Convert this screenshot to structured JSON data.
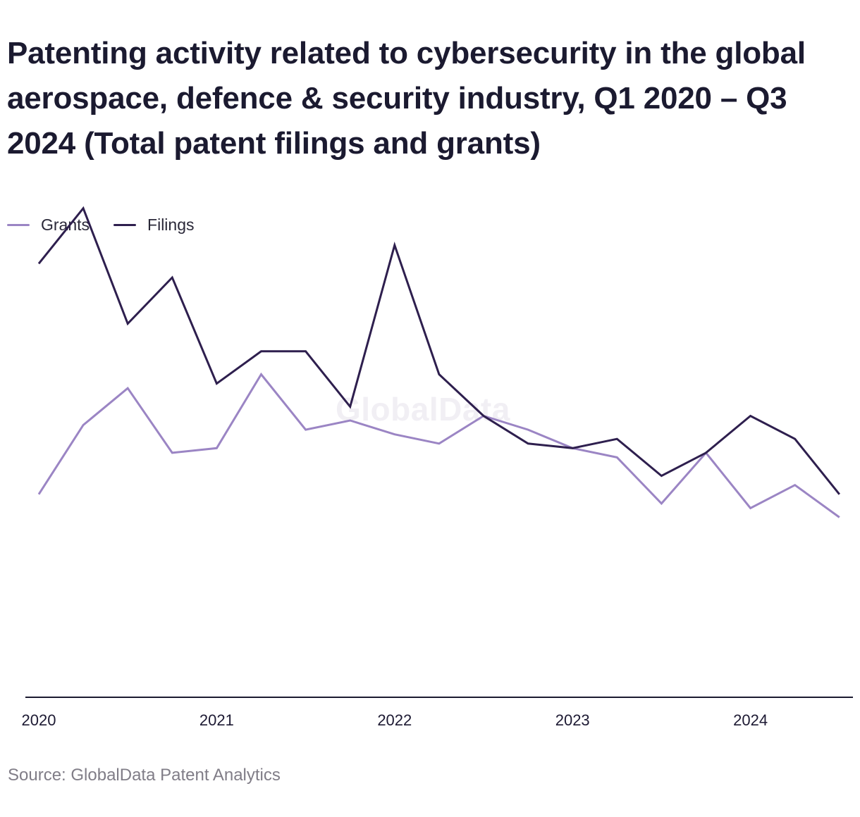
{
  "chart_data": {
    "type": "line",
    "title": "Patenting activity related to cybersecurity in the global aerospace, defence & security industry, Q1 2020 – Q3 2024 (Total patent filings and grants)",
    "xlabel": "",
    "ylabel": "",
    "x_ticks": [
      "2020",
      "2021",
      "2022",
      "2023",
      "2024"
    ],
    "x": [
      "2020-Q1",
      "2020-Q2",
      "2020-Q3",
      "2020-Q4",
      "2021-Q1",
      "2021-Q2",
      "2021-Q3",
      "2021-Q4",
      "2022-Q1",
      "2022-Q2",
      "2022-Q3",
      "2022-Q4",
      "2023-Q1",
      "2023-Q2",
      "2023-Q3",
      "2023-Q4",
      "2024-Q1",
      "2024-Q2",
      "2024-Q3"
    ],
    "ylim": [
      0,
      100
    ],
    "y_axis_labels_shown": false,
    "grid": false,
    "legend_position": "top-left",
    "series": [
      {
        "name": "Grants",
        "color": "#9b85c4",
        "values": [
          44,
          59,
          67,
          53,
          54,
          70,
          58,
          60,
          57,
          55,
          61,
          58,
          54,
          52,
          42,
          53,
          41,
          46,
          39
        ]
      },
      {
        "name": "Filings",
        "color": "#2e1f4e",
        "values": [
          94,
          106,
          81,
          91,
          68,
          75,
          75,
          63,
          98,
          70,
          61,
          55,
          54,
          56,
          48,
          53,
          61,
          56,
          44
        ]
      }
    ],
    "watermark": "GlobalData",
    "source": "Source: GlobalData Patent Analytics"
  }
}
